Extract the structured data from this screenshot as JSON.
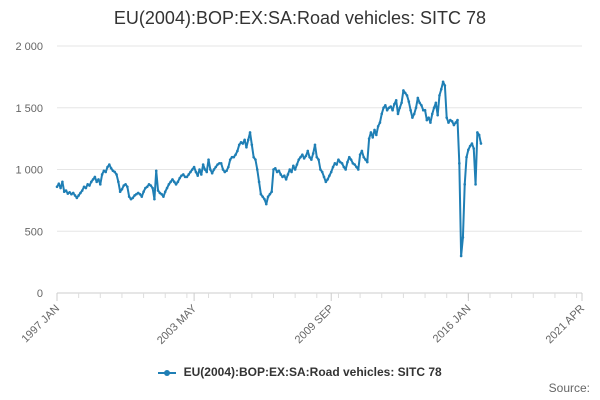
{
  "title": "EU(2004):BOP:EX:SA:Road vehicles: SITC 78",
  "source_label": "Source:",
  "colors": {
    "series": "#1f7fb5",
    "grid": "#e6e6e6",
    "text": "#666666"
  },
  "chart_data": {
    "type": "line",
    "title": "EU(2004):BOP:EX:SA:Road vehicles: SITC 78",
    "xlabel": "",
    "ylabel": "",
    "ylim": [
      0,
      2000
    ],
    "y_ticks": [
      0,
      500,
      1000,
      1500,
      2000
    ],
    "y_tick_labels": [
      "0",
      "500",
      "1 000",
      "1 500",
      "2 000"
    ],
    "x_range": [
      "1997-01",
      "2021-04"
    ],
    "x_ticks": [
      {
        "date": "1997-01",
        "label": "1997 JAN"
      },
      {
        "date": "2003-05",
        "label": "2003 MAY"
      },
      {
        "date": "2009-09",
        "label": "2009 SEP"
      },
      {
        "date": "2016-01",
        "label": "2016 JAN"
      },
      {
        "date": "2021-04",
        "label": "2021 APR"
      }
    ],
    "grid": true,
    "legend_position": "bottom",
    "series": [
      {
        "name": "EU(2004):BOP:EX:SA:Road vehicles: SITC 78",
        "frequency": "monthly",
        "start": "1997-01",
        "values": [
          860,
          885,
          850,
          900,
          820,
          830,
          805,
          815,
          800,
          810,
          790,
          770,
          790,
          810,
          830,
          860,
          850,
          880,
          870,
          900,
          920,
          940,
          900,
          920,
          880,
          960,
          990,
          980,
          1020,
          1040,
          1010,
          990,
          980,
          960,
          900,
          820,
          840,
          870,
          880,
          860,
          780,
          760,
          770,
          790,
          800,
          810,
          800,
          780,
          820,
          850,
          860,
          880,
          870,
          850,
          760,
          990,
          830,
          810,
          800,
          780,
          820,
          850,
          880,
          900,
          920,
          900,
          880,
          900,
          930,
          950,
          960,
          940,
          940,
          960,
          980,
          1000,
          1020,
          980,
          950,
          1000,
          960,
          1040,
          1000,
          980,
          1080,
          1000,
          970,
          1000,
          1020,
          1040,
          1050,
          1050,
          1000,
          980,
          990,
          1020,
          1080,
          1100,
          1100,
          1120,
          1150,
          1200,
          1220,
          1210,
          1240,
          1180,
          1240,
          1300,
          1200,
          1100,
          1080,
          1000,
          900,
          800,
          780,
          760,
          720,
          780,
          800,
          820,
          1000,
          1010,
          980,
          990,
          960,
          940,
          950,
          920,
          960,
          1000,
          980,
          1030,
          1000,
          1040,
          1080,
          1100,
          1120,
          1090,
          1110,
          1150,
          1100,
          1080,
          1130,
          1200,
          1100,
          1080,
          1000,
          980,
          940,
          900,
          920,
          950,
          980,
          1020,
          1050,
          1040,
          1080,
          1060,
          1050,
          1020,
          1000,
          1060,
          1100,
          1080,
          1050,
          1040,
          1020,
          1000,
          1120,
          1150,
          1100,
          1080,
          1060,
          1250,
          1300,
          1260,
          1320,
          1280,
          1350,
          1380,
          1450,
          1500,
          1520,
          1480,
          1500,
          1510,
          1480,
          1530,
          1560,
          1450,
          1500,
          1540,
          1640,
          1620,
          1600,
          1550,
          1480,
          1420,
          1450,
          1500,
          1580,
          1540,
          1520,
          1480,
          1480,
          1400,
          1420,
          1380,
          1450,
          1500,
          1540,
          1440,
          1600,
          1650,
          1710,
          1680,
          1420,
          1380,
          1400,
          1390,
          1360,
          1380,
          1400,
          1050,
          300,
          450,
          880,
          1100,
          1160,
          1190,
          1210,
          1170,
          880,
          1300,
          1280,
          1210
        ]
      }
    ]
  }
}
